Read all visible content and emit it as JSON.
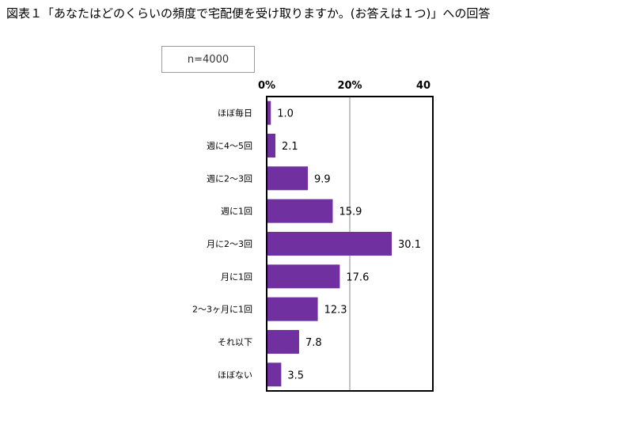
{
  "title": "図表１「あなたはどのくらいの頻度で宅配便を受け取りますか。(お答えは１つ)」への回答",
  "sample_note": "n=4000",
  "colors": {
    "bar": "#7030a0",
    "axis": "#000000",
    "gridline": "#a0a0a0"
  },
  "chart_data": {
    "type": "bar",
    "orientation": "horizontal",
    "categories": [
      "ほぼ毎日",
      "週に4～5回",
      "週に2～3回",
      "週に1回",
      "月に2～3回",
      "月に1回",
      "2～3ヶ月に1回",
      "それ以下",
      "ほぼない"
    ],
    "values": [
      1.0,
      2.1,
      9.9,
      15.9,
      30.1,
      17.6,
      12.3,
      7.8,
      3.5
    ],
    "value_labels": [
      "1.0",
      "2.1",
      "9.9",
      "15.9",
      "30.1",
      "17.6",
      "12.3",
      "7.8",
      "3.5"
    ],
    "xlim": [
      0,
      40
    ],
    "ticks": [
      0,
      20,
      40
    ],
    "tick_labels": [
      "0%",
      "20%",
      "40"
    ],
    "grid": true,
    "title": "",
    "xlabel": "",
    "ylabel": ""
  }
}
